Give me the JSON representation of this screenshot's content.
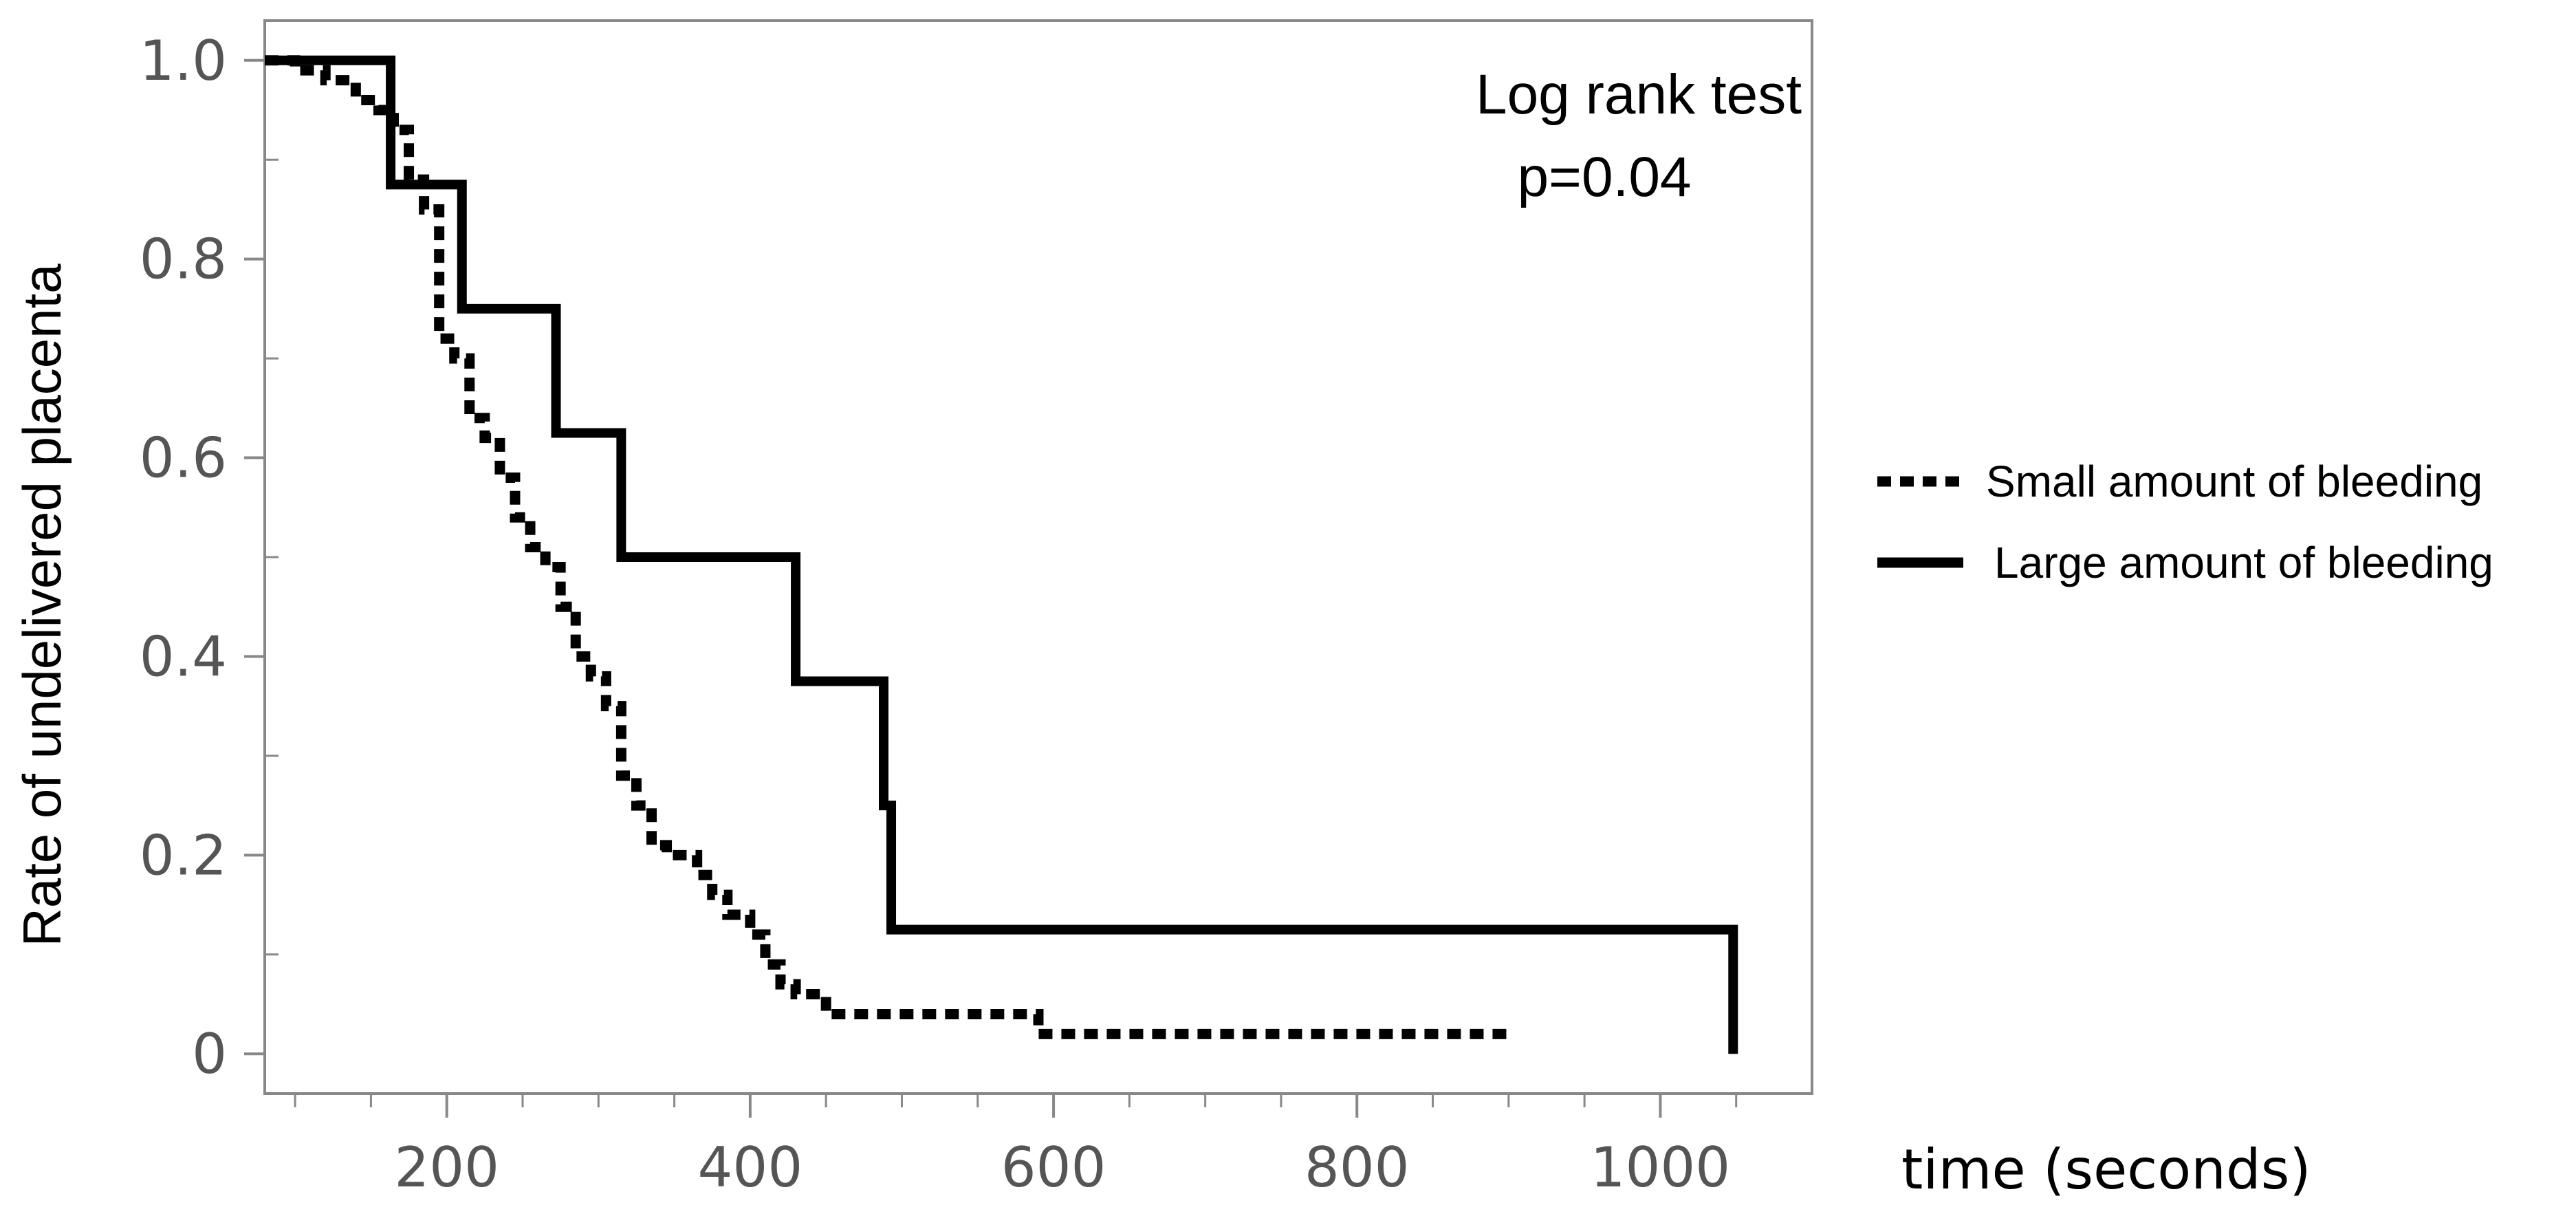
{
  "chart_data": {
    "type": "line",
    "step": true,
    "title": "",
    "xlabel": "time (seconds)",
    "ylabel": "Rate of undelivered  placenta",
    "xlim": [
      80,
      1100
    ],
    "ylim": [
      -0.04,
      1.04
    ],
    "xticks": [
      200,
      400,
      600,
      800,
      1000
    ],
    "xtick_labels": [
      "200",
      "400",
      "600",
      "800",
      "1000"
    ],
    "yticks": [
      0,
      0.2,
      0.4,
      0.6,
      0.8,
      1.0
    ],
    "ytick_labels": [
      "0",
      "0.2",
      "0.4",
      "0.6",
      "0.8",
      "1.0"
    ],
    "grid": false,
    "legend_position": "right",
    "annotation": [
      "Log rank test",
      "p=0.04"
    ],
    "series": [
      {
        "name": "Small amount of bleeding",
        "style": "dotted",
        "color": "#000000",
        "x": [
          80,
          100,
          120,
          140,
          155,
          165,
          175,
          185,
          195,
          205,
          215,
          225,
          235,
          245,
          255,
          265,
          275,
          285,
          295,
          305,
          315,
          325,
          335,
          345,
          365,
          375,
          385,
          400,
          410,
          420,
          430,
          450,
          570,
          590,
          900
        ],
        "y": [
          1.0,
          0.99,
          0.98,
          0.96,
          0.95,
          0.93,
          0.88,
          0.85,
          0.72,
          0.7,
          0.64,
          0.62,
          0.58,
          0.54,
          0.51,
          0.49,
          0.45,
          0.4,
          0.38,
          0.35,
          0.28,
          0.25,
          0.21,
          0.2,
          0.18,
          0.16,
          0.14,
          0.12,
          0.09,
          0.07,
          0.06,
          0.04,
          0.04,
          0.02,
          0.02
        ]
      },
      {
        "name": "Large amount of bleeding",
        "style": "solid",
        "color": "#000000",
        "x": [
          80,
          163,
          210,
          272,
          315,
          430,
          488,
          493,
          1048,
          1048
        ],
        "y": [
          1.0,
          0.875,
          0.75,
          0.625,
          0.5,
          0.375,
          0.25,
          0.125,
          0.125,
          0.0
        ]
      }
    ]
  }
}
